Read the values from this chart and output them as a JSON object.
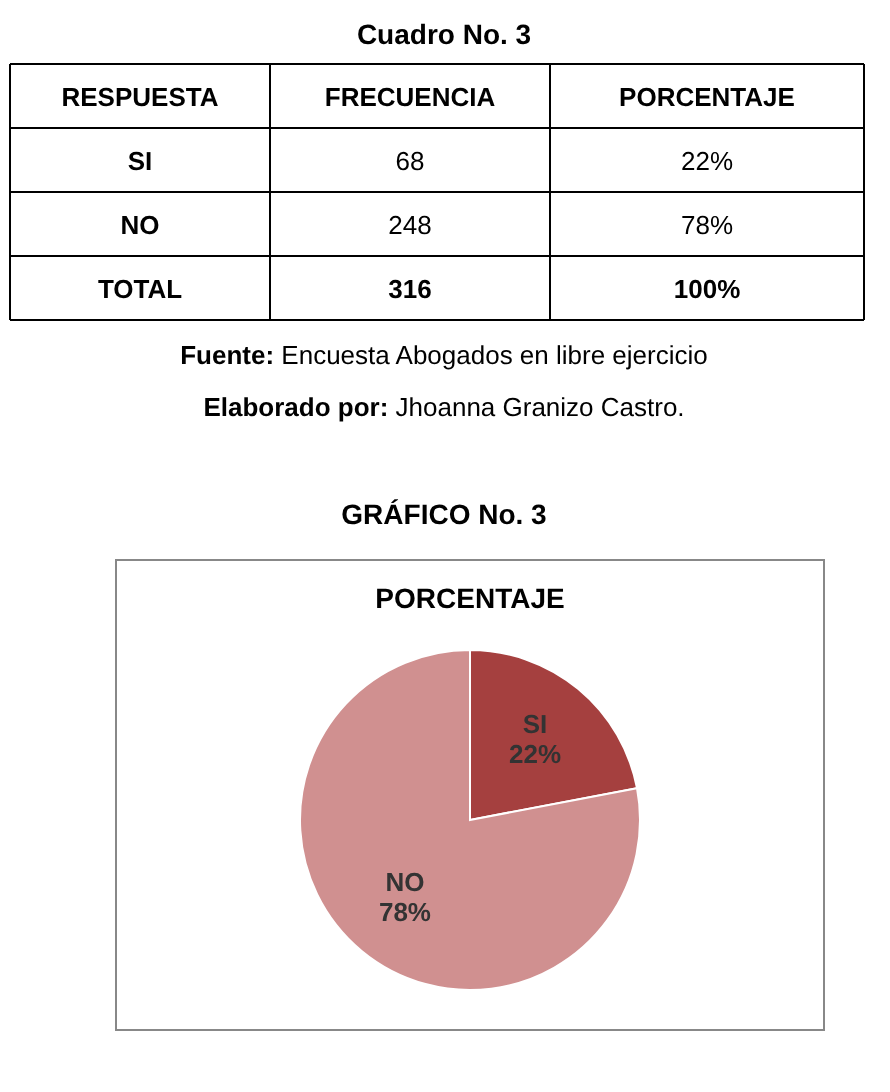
{
  "chart_data": [
    {
      "type": "other",
      "title": "Cuadro No. 3",
      "categories": [
        "RESPUESTA",
        "FRECUENCIA",
        "PORCENTAJE"
      ],
      "cell_labels": [
        [
          "SI",
          "68",
          "22%"
        ],
        [
          "NO",
          "248",
          "78%"
        ],
        [
          "TOTAL",
          "316",
          "100%"
        ]
      ],
      "annotations": [
        "Fuente: Encuesta Abogados en libre ejercicio",
        "Elaborado por: Jhoanna Granizo Castro."
      ]
    },
    {
      "type": "pie",
      "title": "GRÁFICO No. 3",
      "subtitle": "PORCENTAJE",
      "categories": [
        "SI",
        "NO"
      ],
      "values": [
        22,
        78
      ],
      "colors": [
        "#a5403f",
        "#d09090"
      ],
      "value_labels": [
        "22%",
        "78%"
      ]
    }
  ]
}
